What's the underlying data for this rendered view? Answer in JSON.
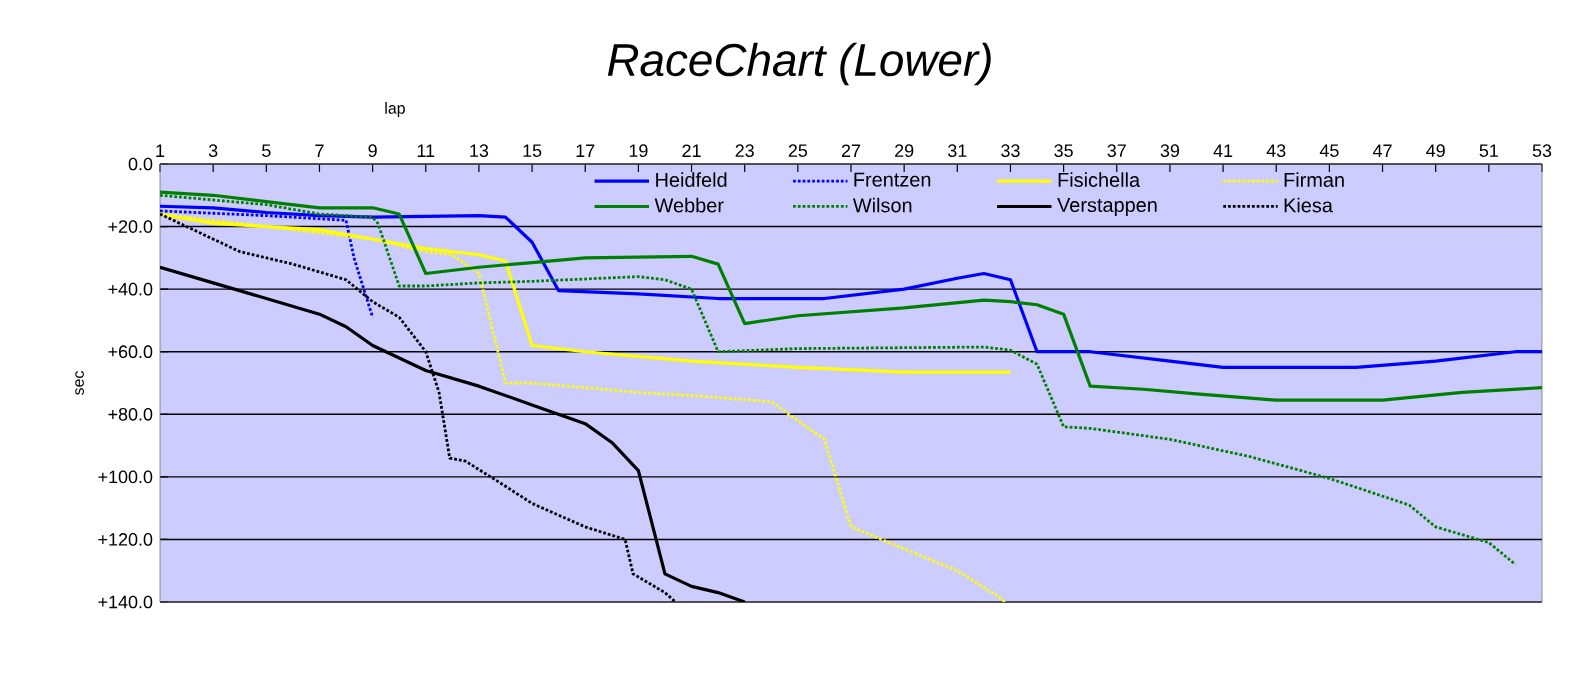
{
  "chart_data": {
    "type": "line",
    "title": "RaceChart (Lower)",
    "xlabel": "lap",
    "ylabel": "sec",
    "xlim": [
      1,
      53
    ],
    "xticks": [
      1,
      3,
      5,
      7,
      9,
      11,
      13,
      15,
      17,
      19,
      21,
      23,
      25,
      27,
      29,
      31,
      33,
      35,
      37,
      39,
      41,
      43,
      45,
      47,
      49,
      51,
      53
    ],
    "ylim": [
      140,
      0
    ],
    "yticks": [
      {
        "value": 0,
        "label": "0.0"
      },
      {
        "value": 20,
        "label": "+20.0"
      },
      {
        "value": 40,
        "label": "+40.0"
      },
      {
        "value": 60,
        "label": "+60.0"
      },
      {
        "value": 80,
        "label": "+80.0"
      },
      {
        "value": 100,
        "label": "+100.0"
      },
      {
        "value": 120,
        "label": "+120.0"
      },
      {
        "value": 140,
        "label": "+140.0"
      }
    ],
    "grid": "y",
    "legend": "top",
    "marker": "none",
    "series": [
      {
        "name": "Heidfeld",
        "color": "#0000ff",
        "line_style": "solid",
        "x": [
          1,
          3,
          5,
          7,
          9,
          13,
          14,
          15,
          16,
          19,
          22,
          26,
          29,
          31,
          32,
          33,
          34,
          36,
          39,
          41,
          46,
          49,
          52,
          53
        ],
        "values": [
          13.5,
          14,
          15.5,
          16.5,
          17,
          16.5,
          17,
          25,
          40.5,
          41.5,
          43,
          43,
          40,
          36.5,
          35,
          37,
          60,
          60,
          63,
          65,
          65,
          63,
          60,
          60
        ]
      },
      {
        "name": "Frentzen",
        "color": "#0000ff",
        "line_style": "dotted",
        "x": [
          1,
          5,
          8,
          8.3,
          9
        ],
        "values": [
          15,
          16.5,
          18,
          30,
          49
        ]
      },
      {
        "name": "Fisichella",
        "color": "#ffff00",
        "line_style": "solid",
        "x": [
          1,
          3,
          5,
          7,
          9,
          11,
          13,
          14,
          15,
          17,
          21,
          25,
          29,
          33
        ],
        "values": [
          16,
          19,
          20,
          21,
          24,
          27,
          29,
          31,
          58,
          60,
          63,
          65,
          66.5,
          66.5
        ]
      },
      {
        "name": "Firman",
        "color": "#ffff00",
        "line_style": "dotted",
        "x": [
          1,
          5,
          9,
          11,
          12,
          13,
          14,
          15,
          19,
          21,
          24,
          25,
          26,
          27,
          29,
          31,
          32.5,
          32.8
        ],
        "values": [
          16,
          20,
          24,
          28,
          29,
          35,
          70,
          70,
          73,
          74,
          76,
          82,
          88,
          116,
          123,
          130,
          138,
          140
        ]
      },
      {
        "name": "Webber",
        "color": "#008000",
        "line_style": "solid",
        "x": [
          1,
          3,
          5,
          7,
          9,
          10,
          11,
          13,
          15,
          17,
          21,
          22,
          23,
          25,
          29,
          32,
          33,
          34,
          35,
          36,
          38,
          40,
          43,
          47,
          50,
          53
        ],
        "values": [
          9,
          10,
          12,
          14,
          14,
          16,
          35,
          33,
          31.5,
          30,
          29.5,
          32,
          51,
          48.5,
          46,
          43.5,
          44,
          45,
          48,
          71,
          72,
          73.5,
          75.5,
          75.5,
          73,
          71.5
        ]
      },
      {
        "name": "Wilson",
        "color": "#008000",
        "line_style": "dotted",
        "x": [
          1,
          5,
          7,
          9,
          9.2,
          10,
          11,
          13,
          15,
          19,
          20,
          21,
          22,
          25,
          32,
          33,
          34,
          35,
          36,
          39,
          42,
          45,
          48,
          49,
          51,
          52
        ],
        "values": [
          10,
          13,
          16,
          17,
          19,
          39,
          39,
          38,
          37.5,
          36,
          37,
          40,
          60,
          59,
          58.5,
          59.5,
          64,
          84,
          84.5,
          88,
          93.5,
          100.5,
          109,
          116,
          121,
          128
        ]
      },
      {
        "name": "Verstappen",
        "color": "#000000",
        "line_style": "solid",
        "x": [
          1,
          3,
          5,
          7,
          8,
          9,
          10,
          11,
          13,
          15,
          17,
          18,
          19,
          20,
          21,
          22,
          23
        ],
        "values": [
          33,
          38,
          43,
          48,
          52,
          58,
          62,
          66,
          71,
          77,
          83,
          89,
          98,
          131,
          135,
          137,
          140
        ]
      },
      {
        "name": "Kiesa",
        "color": "#000000",
        "line_style": "dotted",
        "x": [
          1,
          3,
          4,
          6,
          8,
          9,
          10,
          11,
          11.5,
          11.9,
          12.5,
          14,
          15,
          17,
          18.5,
          18.8,
          20,
          20.4
        ],
        "values": [
          16,
          24,
          28,
          32,
          37,
          44,
          49,
          60,
          73,
          94,
          95,
          103,
          108.5,
          116,
          120,
          131,
          137,
          140
        ]
      }
    ]
  }
}
